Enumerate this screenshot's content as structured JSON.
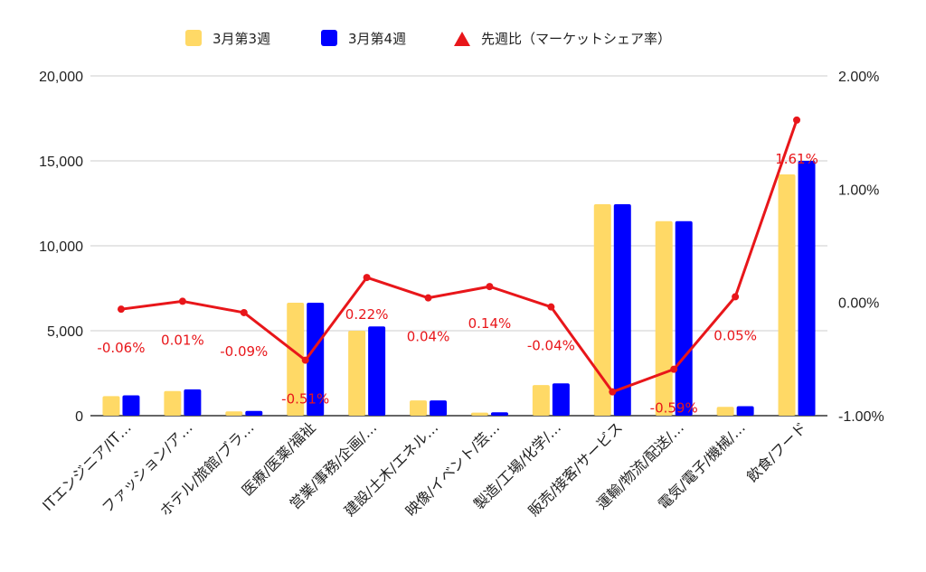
{
  "chart_data": {
    "type": "bar",
    "categories": [
      "ITエンジニア/IT…",
      "ファッション/ア…",
      "ホテル/旅館/ブラ…",
      "医療/医薬/福祉",
      "営業/事務/企画/…",
      "建設/土木/エネル…",
      "映像/イベント/芸…",
      "製造/工場/化学/…",
      "販売/接客/サービス",
      "運輸/物流/配送/…",
      "電気/電子/機械/…",
      "飲食/フード"
    ],
    "series": [
      {
        "name": "3月第3週",
        "color": "#ffd966",
        "axis": "left",
        "values": [
          1150,
          1450,
          250,
          6650,
          5000,
          900,
          180,
          1800,
          12450,
          11450,
          520,
          14200
        ]
      },
      {
        "name": "3月第4週",
        "color": "#0000ff",
        "axis": "left",
        "values": [
          1200,
          1550,
          280,
          6650,
          5250,
          900,
          200,
          1900,
          12450,
          11450,
          560,
          15000
        ]
      },
      {
        "name": "先週比（マーケットシェア率）",
        "type": "line",
        "color": "#e8161a",
        "axis": "right",
        "values": [
          -0.06,
          0.01,
          -0.09,
          -0.51,
          0.22,
          0.04,
          0.14,
          -0.04,
          -0.79,
          -0.59,
          0.05,
          1.61
        ],
        "labels": [
          "-0.06%",
          "0.01%",
          "-0.09%",
          "-0.51%",
          "0.22%",
          "0.04%",
          "0.14%",
          "-0.04%",
          "",
          "-0.59%",
          "0.05%",
          "1.61%"
        ]
      }
    ],
    "y_left": {
      "min": 0,
      "max": 20000,
      "ticks": [
        0,
        5000,
        10000,
        15000,
        20000
      ],
      "tick_labels": [
        "0",
        "5,000",
        "10,000",
        "15,000",
        "20,000"
      ]
    },
    "y_right": {
      "min": -1,
      "max": 2,
      "ticks": [
        -1,
        0,
        1,
        2
      ],
      "tick_labels": [
        "-1.00%",
        "0.00%",
        "1.00%",
        "2.00%"
      ]
    },
    "grid": true,
    "legend_position": "top"
  }
}
